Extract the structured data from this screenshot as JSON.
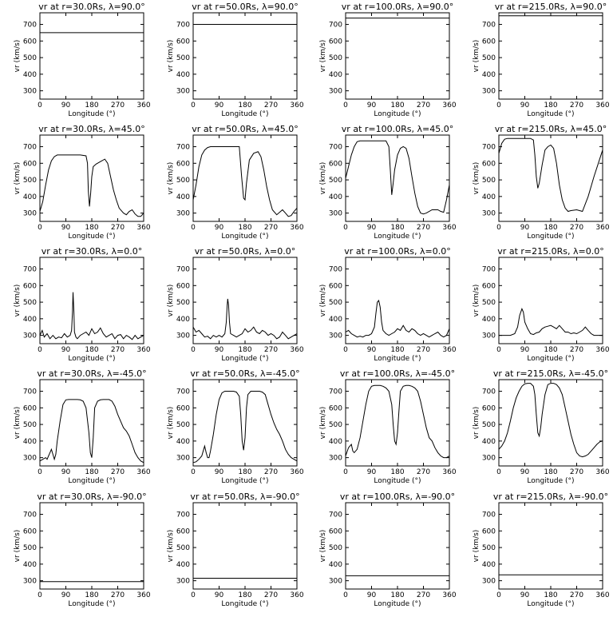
{
  "figure": {
    "x_ticks": [
      "0",
      "90",
      "180",
      "270",
      "360"
    ],
    "y_ticks": [
      "300",
      "400",
      "500",
      "600",
      "700"
    ],
    "xlabel": "Longitude (°)",
    "ylabel": "vr (km/s)"
  },
  "chart_data": [
    {
      "type": "line",
      "title": "vr at r=30.0Rs, λ=90.0°",
      "xlabel": "Longitude (°)",
      "ylabel": "vr (km/s)",
      "xlim": [
        0,
        360
      ],
      "ylim": [
        250,
        770
      ],
      "x": [
        0,
        360
      ],
      "y": [
        650,
        650
      ]
    },
    {
      "type": "line",
      "title": "vr at r=50.0Rs, λ=90.0°",
      "xlabel": "Longitude (°)",
      "ylabel": "vr (km/s)",
      "xlim": [
        0,
        360
      ],
      "ylim": [
        250,
        770
      ],
      "x": [
        0,
        360
      ],
      "y": [
        700,
        700
      ]
    },
    {
      "type": "line",
      "title": "vr at r=100.0Rs, λ=90.0°",
      "xlabel": "Longitude (°)",
      "ylabel": "vr (km/s)",
      "xlim": [
        0,
        360
      ],
      "ylim": [
        250,
        770
      ],
      "x": [
        0,
        360
      ],
      "y": [
        738,
        738
      ]
    },
    {
      "type": "line",
      "title": "vr at r=215.0Rs, λ=90.0°",
      "xlabel": "Longitude (°)",
      "ylabel": "vr (km/s)",
      "xlim": [
        0,
        360
      ],
      "ylim": [
        250,
        770
      ],
      "x": [
        0,
        360
      ],
      "y": [
        752,
        752
      ]
    },
    {
      "type": "line",
      "title": "vr at r=30.0Rs, λ=45.0°",
      "xlabel": "Longitude (°)",
      "ylabel": "vr (km/s)",
      "xlim": [
        0,
        360
      ],
      "ylim": [
        250,
        770
      ],
      "x": [
        0,
        10,
        20,
        30,
        40,
        50,
        60,
        80,
        100,
        120,
        140,
        160,
        165,
        168,
        172,
        176,
        180,
        185,
        195,
        210,
        225,
        235,
        245,
        255,
        265,
        275,
        290,
        300,
        310,
        320,
        330,
        340,
        350,
        360
      ],
      "y": [
        310,
        370,
        470,
        560,
        615,
        640,
        650,
        650,
        650,
        650,
        650,
        645,
        600,
        430,
        340,
        420,
        520,
        580,
        595,
        610,
        625,
        600,
        520,
        440,
        380,
        330,
        300,
        290,
        310,
        320,
        295,
        280,
        280,
        300
      ]
    },
    {
      "type": "line",
      "title": "vr at r=50.0Rs, λ=45.0°",
      "xlabel": "Longitude (°)",
      "ylabel": "vr (km/s)",
      "xlim": [
        0,
        360
      ],
      "ylim": [
        250,
        770
      ],
      "x": [
        0,
        10,
        20,
        30,
        40,
        50,
        60,
        80,
        100,
        120,
        140,
        160,
        168,
        175,
        180,
        185,
        195,
        210,
        225,
        235,
        245,
        255,
        265,
        275,
        290,
        300,
        310,
        320,
        330,
        340,
        350,
        360
      ],
      "y": [
        380,
        470,
        580,
        650,
        680,
        695,
        700,
        700,
        700,
        700,
        700,
        700,
        520,
        390,
        380,
        480,
        620,
        660,
        670,
        640,
        560,
        460,
        380,
        320,
        290,
        305,
        320,
        300,
        280,
        285,
        310,
        330
      ]
    },
    {
      "type": "line",
      "title": "vr at r=100.0Rs, λ=45.0°",
      "xlabel": "Longitude (°)",
      "ylabel": "vr (km/s)",
      "xlim": [
        0,
        360
      ],
      "ylim": [
        250,
        770
      ],
      "x": [
        0,
        10,
        20,
        30,
        40,
        50,
        60,
        80,
        100,
        120,
        140,
        150,
        155,
        160,
        165,
        170,
        180,
        190,
        200,
        210,
        220,
        230,
        240,
        250,
        260,
        270,
        280,
        300,
        320,
        330,
        340,
        350,
        360
      ],
      "y": [
        510,
        580,
        650,
        700,
        730,
        735,
        735,
        735,
        735,
        735,
        735,
        700,
        560,
        410,
        480,
        560,
        650,
        690,
        700,
        690,
        630,
        520,
        420,
        340,
        300,
        295,
        300,
        320,
        320,
        310,
        305,
        380,
        470
      ]
    },
    {
      "type": "line",
      "title": "vr at r=215.0Rs, λ=45.0°",
      "xlabel": "Longitude (°)",
      "ylabel": "vr (km/s)",
      "xlim": [
        0,
        360
      ],
      "ylim": [
        250,
        770
      ],
      "x": [
        0,
        10,
        20,
        30,
        60,
        90,
        110,
        120,
        125,
        130,
        135,
        140,
        150,
        160,
        170,
        180,
        190,
        200,
        210,
        220,
        230,
        240,
        250,
        270,
        290,
        310,
        330,
        345,
        360
      ],
      "y": [
        660,
        720,
        745,
        750,
        750,
        750,
        750,
        740,
        650,
        520,
        450,
        480,
        590,
        680,
        700,
        710,
        690,
        600,
        470,
        380,
        330,
        310,
        315,
        320,
        310,
        400,
        520,
        600,
        680
      ]
    },
    {
      "type": "line",
      "title": "vr at r=30.0Rs, λ=0.0°",
      "xlabel": "Longitude (°)",
      "ylabel": "vr (km/s)",
      "xlim": [
        0,
        360
      ],
      "ylim": [
        250,
        770
      ],
      "x": [
        0,
        8,
        15,
        25,
        35,
        45,
        55,
        65,
        75,
        85,
        95,
        105,
        110,
        113,
        115,
        118,
        120,
        125,
        130,
        140,
        150,
        160,
        170,
        180,
        190,
        200,
        210,
        220,
        230,
        240,
        250,
        260,
        270,
        280,
        290,
        300,
        310,
        320,
        330,
        340,
        350,
        360
      ],
      "y": [
        300,
        330,
        290,
        310,
        280,
        300,
        280,
        290,
        285,
        310,
        290,
        300,
        330,
        440,
        560,
        440,
        320,
        290,
        280,
        300,
        310,
        320,
        300,
        340,
        310,
        320,
        345,
        310,
        290,
        300,
        310,
        280,
        300,
        305,
        280,
        300,
        290,
        275,
        300,
        280,
        290,
        300
      ]
    },
    {
      "type": "line",
      "title": "vr at r=50.0Rs, λ=0.0°",
      "xlabel": "Longitude (°)",
      "ylabel": "vr (km/s)",
      "xlim": [
        0,
        360
      ],
      "ylim": [
        250,
        770
      ],
      "x": [
        0,
        10,
        20,
        30,
        40,
        50,
        60,
        70,
        80,
        90,
        100,
        110,
        115,
        118,
        120,
        123,
        126,
        130,
        140,
        150,
        160,
        170,
        180,
        190,
        200,
        210,
        220,
        230,
        240,
        250,
        260,
        270,
        280,
        290,
        300,
        310,
        320,
        330,
        340,
        350,
        360
      ],
      "y": [
        350,
        320,
        330,
        310,
        290,
        295,
        280,
        300,
        290,
        300,
        290,
        310,
        380,
        480,
        520,
        480,
        380,
        310,
        300,
        290,
        300,
        310,
        340,
        320,
        330,
        350,
        320,
        310,
        330,
        320,
        300,
        310,
        300,
        280,
        290,
        320,
        300,
        280,
        290,
        300,
        310
      ]
    },
    {
      "type": "line",
      "title": "vr at r=100.0Rs, λ=0.0°",
      "xlabel": "Longitude (°)",
      "ylabel": "vr (km/s)",
      "xlim": [
        0,
        360
      ],
      "ylim": [
        250,
        770
      ],
      "x": [
        0,
        10,
        20,
        30,
        40,
        50,
        60,
        70,
        80,
        90,
        100,
        105,
        110,
        115,
        120,
        125,
        130,
        140,
        150,
        160,
        170,
        180,
        190,
        200,
        210,
        220,
        230,
        240,
        250,
        260,
        270,
        280,
        290,
        300,
        310,
        320,
        330,
        340,
        350,
        360
      ],
      "y": [
        320,
        330,
        310,
        300,
        290,
        295,
        290,
        300,
        300,
        310,
        350,
        430,
        500,
        510,
        470,
        380,
        330,
        310,
        300,
        310,
        320,
        340,
        330,
        360,
        330,
        320,
        340,
        330,
        310,
        300,
        310,
        300,
        290,
        300,
        310,
        320,
        300,
        290,
        300,
        340
      ]
    },
    {
      "type": "line",
      "title": "vr at r=215.0Rs, λ=0.0°",
      "xlabel": "Longitude (°)",
      "ylabel": "vr (km/s)",
      "xlim": [
        0,
        360
      ],
      "ylim": [
        250,
        770
      ],
      "x": [
        0,
        20,
        40,
        55,
        65,
        72,
        80,
        85,
        90,
        100,
        110,
        120,
        130,
        140,
        150,
        160,
        170,
        180,
        190,
        200,
        210,
        220,
        230,
        240,
        250,
        260,
        270,
        280,
        290,
        300,
        310,
        320,
        330,
        340,
        350,
        360
      ],
      "y": [
        300,
        300,
        300,
        310,
        350,
        420,
        460,
        440,
        380,
        340,
        310,
        305,
        315,
        320,
        340,
        350,
        355,
        360,
        350,
        340,
        360,
        340,
        320,
        320,
        310,
        315,
        310,
        320,
        330,
        350,
        330,
        310,
        300,
        300,
        300,
        300
      ]
    },
    {
      "type": "line",
      "title": "vr at r=30.0Rs, λ=-45.0°",
      "xlabel": "Longitude (°)",
      "ylabel": "vr (km/s)",
      "xlim": [
        0,
        360
      ],
      "ylim": [
        250,
        770
      ],
      "x": [
        0,
        10,
        20,
        25,
        30,
        35,
        40,
        45,
        50,
        55,
        60,
        70,
        80,
        90,
        100,
        110,
        120,
        130,
        140,
        150,
        160,
        170,
        175,
        180,
        185,
        190,
        200,
        210,
        220,
        230,
        240,
        250,
        260,
        270,
        280,
        290,
        300,
        310,
        320,
        330,
        340,
        350,
        360
      ],
      "y": [
        280,
        290,
        300,
        290,
        310,
        330,
        350,
        320,
        290,
        320,
        400,
        520,
        620,
        648,
        650,
        650,
        650,
        650,
        648,
        640,
        600,
        450,
        330,
        300,
        420,
        600,
        640,
        648,
        650,
        650,
        650,
        640,
        610,
        560,
        520,
        480,
        460,
        430,
        380,
        330,
        300,
        280,
        270
      ]
    },
    {
      "type": "line",
      "title": "vr at r=50.0Rs, λ=-45.0°",
      "xlabel": "Longitude (°)",
      "ylabel": "vr (km/s)",
      "xlim": [
        0,
        360
      ],
      "ylim": [
        250,
        770
      ],
      "x": [
        0,
        10,
        20,
        30,
        35,
        40,
        45,
        50,
        55,
        60,
        70,
        80,
        90,
        100,
        110,
        120,
        130,
        140,
        150,
        160,
        165,
        170,
        175,
        180,
        185,
        190,
        200,
        210,
        220,
        230,
        240,
        250,
        260,
        270,
        280,
        290,
        300,
        310,
        320,
        330,
        340,
        350,
        360
      ],
      "y": [
        270,
        275,
        290,
        310,
        340,
        370,
        330,
        300,
        300,
        340,
        440,
        560,
        650,
        690,
        700,
        700,
        700,
        700,
        695,
        670,
        560,
        400,
        345,
        420,
        600,
        680,
        700,
        700,
        700,
        700,
        695,
        680,
        620,
        560,
        510,
        470,
        440,
        400,
        350,
        320,
        300,
        290,
        280
      ]
    },
    {
      "type": "line",
      "title": "vr at r=100.0Rs, λ=-45.0°",
      "xlabel": "Longitude (°)",
      "ylabel": "vr (km/s)",
      "xlim": [
        0,
        360
      ],
      "ylim": [
        250,
        770
      ],
      "x": [
        0,
        10,
        20,
        25,
        30,
        40,
        50,
        60,
        70,
        80,
        90,
        100,
        110,
        120,
        130,
        140,
        150,
        160,
        165,
        170,
        175,
        180,
        185,
        190,
        200,
        210,
        220,
        230,
        240,
        250,
        260,
        270,
        280,
        290,
        300,
        310,
        320,
        330,
        340,
        350,
        360
      ],
      "y": [
        310,
        360,
        380,
        340,
        330,
        350,
        420,
        520,
        620,
        700,
        730,
        735,
        735,
        735,
        730,
        720,
        700,
        620,
        500,
        400,
        380,
        450,
        580,
        700,
        730,
        735,
        735,
        730,
        720,
        700,
        640,
        560,
        480,
        420,
        400,
        360,
        330,
        310,
        300,
        300,
        310
      ]
    },
    {
      "type": "line",
      "title": "vr at r=215.0Rs, λ=-45.0°",
      "xlabel": "Longitude (°)",
      "ylabel": "vr (km/s)",
      "xlim": [
        0,
        360
      ],
      "ylim": [
        250,
        770
      ],
      "x": [
        0,
        10,
        20,
        30,
        40,
        50,
        60,
        70,
        80,
        90,
        100,
        110,
        120,
        125,
        130,
        135,
        140,
        145,
        150,
        160,
        170,
        180,
        190,
        200,
        210,
        220,
        230,
        240,
        250,
        260,
        270,
        280,
        290,
        300,
        310,
        320,
        330,
        340,
        350,
        360
      ],
      "y": [
        350,
        370,
        400,
        450,
        520,
        600,
        660,
        700,
        730,
        745,
        748,
        748,
        730,
        680,
        560,
        450,
        430,
        480,
        560,
        680,
        740,
        748,
        748,
        740,
        720,
        680,
        600,
        520,
        440,
        380,
        330,
        310,
        305,
        310,
        320,
        340,
        360,
        380,
        395,
        400
      ]
    },
    {
      "type": "line",
      "title": "vr at r=30.0Rs, λ=-90.0°",
      "xlabel": "Longitude (°)",
      "ylabel": "vr (km/s)",
      "xlim": [
        0,
        360
      ],
      "ylim": [
        250,
        770
      ],
      "x": [
        0,
        360
      ],
      "y": [
        295,
        295
      ]
    },
    {
      "type": "line",
      "title": "vr at r=50.0Rs, λ=-90.0°",
      "xlabel": "Longitude (°)",
      "ylabel": "vr (km/s)",
      "xlim": [
        0,
        360
      ],
      "ylim": [
        250,
        770
      ],
      "x": [
        0,
        360
      ],
      "y": [
        315,
        315
      ]
    },
    {
      "type": "line",
      "title": "vr at r=100.0Rs, λ=-90.0°",
      "xlabel": "Longitude (°)",
      "ylabel": "vr (km/s)",
      "xlim": [
        0,
        360
      ],
      "ylim": [
        250,
        770
      ],
      "x": [
        0,
        360
      ],
      "y": [
        330,
        330
      ]
    },
    {
      "type": "line",
      "title": "vr at r=215.0Rs, λ=-90.0°",
      "xlabel": "Longitude (°)",
      "ylabel": "vr (km/s)",
      "xlim": [
        0,
        360
      ],
      "ylim": [
        250,
        770
      ],
      "x": [
        0,
        360
      ],
      "y": [
        335,
        335
      ]
    }
  ]
}
